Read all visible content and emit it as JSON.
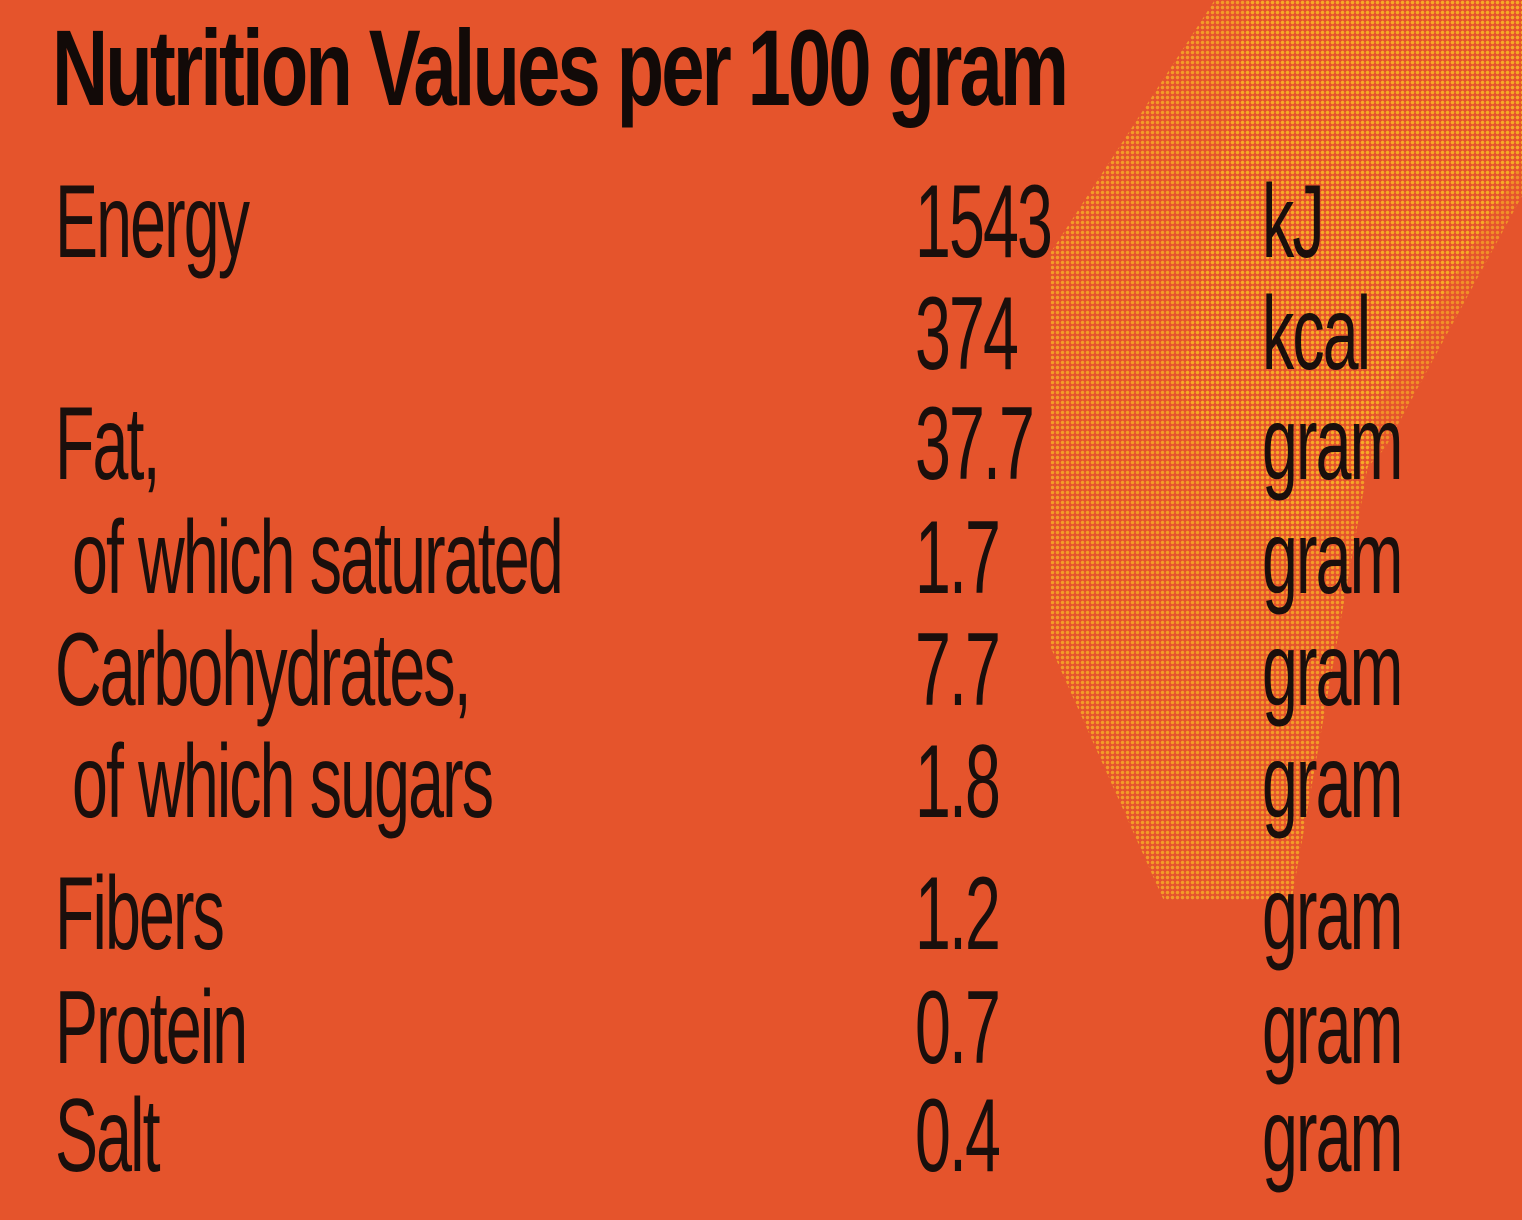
{
  "title": "Nutrition Values per 100 gram",
  "rows": [
    {
      "label": "Energy",
      "value": "1543",
      "unit": "kJ"
    },
    {
      "label": "",
      "value": "374",
      "unit": "kcal"
    },
    {
      "label": "Fat,",
      "value": "37.7",
      "unit": "gram"
    },
    {
      "label": "of which saturated",
      "value": "1.7",
      "unit": "gram"
    },
    {
      "label": "Carbohydrates,",
      "value": "7.7",
      "unit": "gram"
    },
    {
      "label": "of which sugars",
      "value": "1.8",
      "unit": "gram"
    },
    {
      "label": "Fibers",
      "value": "1.2",
      "unit": "gram"
    },
    {
      "label": "Protein",
      "value": "0.7",
      "unit": "gram"
    },
    {
      "label": "Salt",
      "value": "0.4",
      "unit": "gram"
    }
  ],
  "colors": {
    "background": "#e5542c",
    "halftone": "#f7b228",
    "text": "#1a0f0c"
  }
}
